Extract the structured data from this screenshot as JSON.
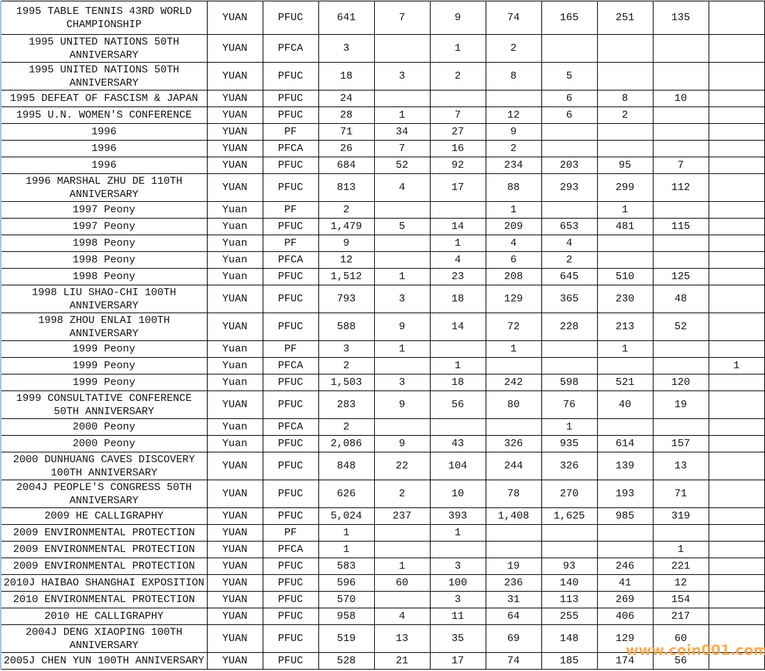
{
  "rows": [
    {
      "h": "f",
      "cells": [
        "1995 TABLE TENNIS 43RD WORLD CHAMPIONSHIP",
        "YUAN",
        "PFUC",
        "641",
        "7",
        "9",
        "74",
        "165",
        "251",
        "135",
        ""
      ]
    },
    {
      "h": "t",
      "cells": [
        "1995 UNITED NATIONS 50TH ANNIVERSARY",
        "YUAN",
        "PFCA",
        "3",
        "",
        "1",
        "2",
        "",
        "",
        "",
        ""
      ]
    },
    {
      "h": "t",
      "cells": [
        "1995 UNITED NATIONS 50TH ANNIVERSARY",
        "YUAN",
        "PFUC",
        "18",
        "3",
        "2",
        "8",
        "5",
        "",
        "",
        ""
      ]
    },
    {
      "h": "s",
      "cells": [
        "1995 DEFEAT OF FASCISM & JAPAN",
        "YUAN",
        "PFUC",
        "24",
        "",
        "",
        "",
        "6",
        "8",
        "10",
        ""
      ]
    },
    {
      "h": "s",
      "cells": [
        "1995 U.N. WOMEN'S CONFERENCE",
        "YUAN",
        "PFUC",
        "28",
        "1",
        "7",
        "12",
        "6",
        "2",
        "",
        ""
      ]
    },
    {
      "h": "s",
      "cells": [
        "1996",
        "YUAN",
        "PF",
        "71",
        "34",
        "27",
        "9",
        "",
        "",
        "",
        ""
      ]
    },
    {
      "h": "s",
      "cells": [
        "1996",
        "YUAN",
        "PFCA",
        "26",
        "7",
        "16",
        "2",
        "",
        "",
        "",
        ""
      ]
    },
    {
      "h": "s",
      "cells": [
        "1996",
        "YUAN",
        "PFUC",
        "684",
        "52",
        "92",
        "234",
        "203",
        "95",
        "7",
        ""
      ]
    },
    {
      "h": "t",
      "cells": [
        "1996 MARSHAL ZHU DE 110TH ANNIVERSARY",
        "YUAN",
        "PFUC",
        "813",
        "4",
        "17",
        "88",
        "293",
        "299",
        "112",
        ""
      ]
    },
    {
      "h": "s",
      "cells": [
        "1997 Peony",
        "Yuan",
        "PF",
        "2",
        "",
        "",
        "1",
        "",
        "1",
        "",
        ""
      ]
    },
    {
      "h": "s",
      "cells": [
        "1997 Peony",
        "Yuan",
        "PFUC",
        "1,479",
        "5",
        "14",
        "209",
        "653",
        "481",
        "115",
        ""
      ]
    },
    {
      "h": "s",
      "cells": [
        "1998 Peony",
        "Yuan",
        "PF",
        "9",
        "",
        "1",
        "4",
        "4",
        "",
        "",
        ""
      ]
    },
    {
      "h": "s",
      "cells": [
        "1998 Peony",
        "Yuan",
        "PFCA",
        "12",
        "",
        "4",
        "6",
        "2",
        "",
        "",
        ""
      ]
    },
    {
      "h": "s",
      "cells": [
        "1998 Peony",
        "Yuan",
        "PFUC",
        "1,512",
        "1",
        "23",
        "208",
        "645",
        "510",
        "125",
        ""
      ]
    },
    {
      "h": "t",
      "cells": [
        "1998 LIU SHAO-CHI 100TH ANNIVERSARY",
        "YUAN",
        "PFUC",
        "793",
        "3",
        "18",
        "129",
        "365",
        "230",
        "48",
        ""
      ]
    },
    {
      "h": "t",
      "cells": [
        "1998 ZHOU ENLAI 100TH ANNIVERSARY",
        "YUAN",
        "PFUC",
        "588",
        "9",
        "14",
        "72",
        "228",
        "213",
        "52",
        ""
      ]
    },
    {
      "h": "s",
      "cells": [
        "1999 Peony",
        "Yuan",
        "PF",
        "3",
        "1",
        "",
        "1",
        "",
        "1",
        "",
        ""
      ]
    },
    {
      "h": "s",
      "cells": [
        "1999 Peony",
        "Yuan",
        "PFCA",
        "2",
        "",
        "1",
        "",
        "",
        "",
        "",
        "1"
      ]
    },
    {
      "h": "s",
      "cells": [
        "1999 Peony",
        "Yuan",
        "PFUC",
        "1,503",
        "3",
        "18",
        "242",
        "598",
        "521",
        "120",
        ""
      ]
    },
    {
      "h": "t",
      "cells": [
        "1999 CONSULTATIVE CONFERENCE 50TH ANNIVERSARY",
        "YUAN",
        "PFUC",
        "283",
        "9",
        "56",
        "80",
        "76",
        "40",
        "19",
        ""
      ]
    },
    {
      "h": "s",
      "cells": [
        "2000 Peony",
        "Yuan",
        "PFCA",
        "2",
        "",
        "",
        "",
        "1",
        "",
        "",
        ""
      ]
    },
    {
      "h": "s",
      "cells": [
        "2000 Peony",
        "Yuan",
        "PFUC",
        "2,086",
        "9",
        "43",
        "326",
        "935",
        "614",
        "157",
        ""
      ]
    },
    {
      "h": "t",
      "cells": [
        "2000 DUNHUANG CAVES DISCOVERY 100TH ANNIVERSARY",
        "YUAN",
        "PFUC",
        "848",
        "22",
        "104",
        "244",
        "326",
        "139",
        "13",
        ""
      ]
    },
    {
      "h": "t",
      "cells": [
        "2004J PEOPLE'S CONGRESS 50TH ANNIVERSARY",
        "YUAN",
        "PFUC",
        "626",
        "2",
        "10",
        "78",
        "270",
        "193",
        "71",
        ""
      ]
    },
    {
      "h": "s",
      "cells": [
        "2009 HE CALLIGRAPHY",
        "YUAN",
        "PFUC",
        "5,024",
        "237",
        "393",
        "1,408",
        "1,625",
        "985",
        "319",
        ""
      ]
    },
    {
      "h": "s",
      "cells": [
        "2009 ENVIRONMENTAL PROTECTION",
        "YUAN",
        "PF",
        "1",
        "",
        "1",
        "",
        "",
        "",
        "",
        ""
      ]
    },
    {
      "h": "s",
      "cells": [
        "2009 ENVIRONMENTAL PROTECTION",
        "YUAN",
        "PFCA",
        "1",
        "",
        "",
        "",
        "",
        "",
        "1",
        ""
      ]
    },
    {
      "h": "s",
      "cells": [
        "2009 ENVIRONMENTAL PROTECTION",
        "YUAN",
        "PFUC",
        "583",
        "1",
        "3",
        "19",
        "93",
        "246",
        "221",
        ""
      ]
    },
    {
      "h": "s",
      "cells": [
        "2010J HAIBAO SHANGHAI EXPOSITION",
        "YUAN",
        "PFUC",
        "596",
        "60",
        "100",
        "236",
        "140",
        "41",
        "12",
        ""
      ]
    },
    {
      "h": "s",
      "cells": [
        "2010 ENVIRONMENTAL PROTECTION",
        "YUAN",
        "PFUC",
        "570",
        "",
        "3",
        "31",
        "113",
        "269",
        "154",
        ""
      ]
    },
    {
      "h": "s",
      "cells": [
        "2010 HE CALLIGRAPHY",
        "YUAN",
        "PFUC",
        "958",
        "4",
        "11",
        "64",
        "255",
        "406",
        "217",
        ""
      ]
    },
    {
      "h": "t",
      "cells": [
        "2004J DENG XIAOPING 100TH ANNIVERSARY",
        "YUAN",
        "PFUC",
        "519",
        "13",
        "35",
        "69",
        "148",
        "129",
        "60",
        ""
      ]
    },
    {
      "h": "s",
      "cells": [
        "2005J CHEN YUN 100TH ANNIVERSARY",
        "YUAN",
        "PFUC",
        "528",
        "21",
        "17",
        "74",
        "185",
        "174",
        "56",
        ""
      ]
    }
  ],
  "watermark": "www.coin001.com",
  "colors": {
    "border": "#000000",
    "left_edge": "#a9bfdc",
    "watermark": "#f6a13d"
  }
}
